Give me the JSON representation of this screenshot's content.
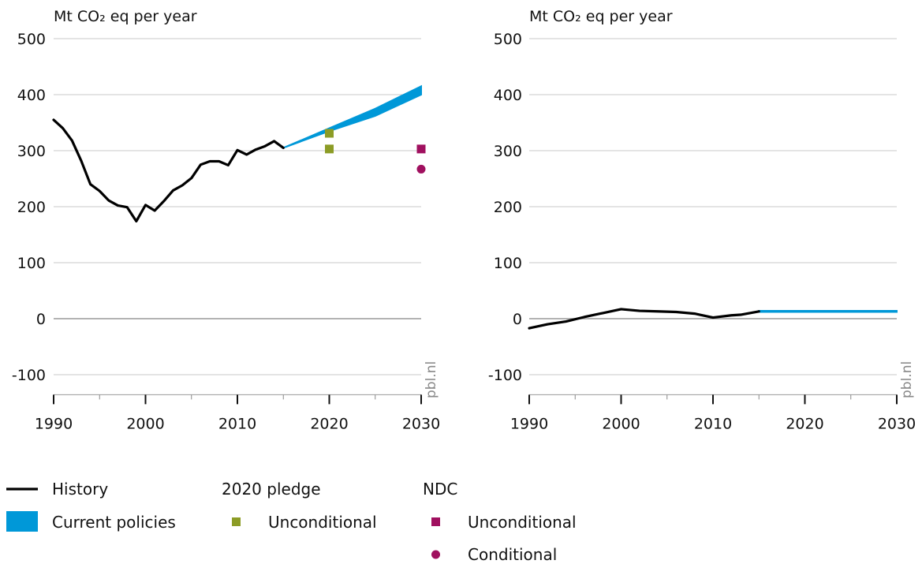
{
  "colors": {
    "history": "#000000",
    "current_policies": "#0098d8",
    "pledge_2020": "#8c9c26",
    "ndc": "#a0105f",
    "grid": "#c8c8c8",
    "zero": "#9a9a9a"
  },
  "legend": {
    "history": "History",
    "current_policies": "Current policies",
    "pledge_2020_title": "2020 pledge",
    "pledge_2020_unconditional": "Unconditional",
    "ndc_title": "NDC",
    "ndc_unconditional": "Unconditional",
    "ndc_conditional": "Conditional"
  },
  "chart_data": [
    {
      "type": "line",
      "ylabel": "Mt CO₂ eq per year",
      "source": "pbl.nl",
      "xlim": [
        1990,
        2030
      ],
      "ylim": [
        -140,
        500
      ],
      "xticks": [
        "1990",
        "2000",
        "2010",
        "2020",
        "2030"
      ],
      "yticks": [
        "500",
        "400",
        "300",
        "200",
        "100",
        "0",
        "-100"
      ],
      "history": {
        "x": [
          1990,
          1991,
          1992,
          1993,
          1994,
          1995,
          1996,
          1997,
          1998,
          1999,
          2000,
          2001,
          2002,
          2003,
          2004,
          2005,
          2006,
          2007,
          2008,
          2009,
          2010,
          2011,
          2012,
          2013,
          2014,
          2015
        ],
        "y": [
          355,
          340,
          318,
          282,
          240,
          228,
          211,
          202,
          199,
          174,
          203,
          193,
          210,
          229,
          238,
          251,
          275,
          281,
          281,
          274,
          301,
          293,
          302,
          308,
          317,
          305
        ]
      },
      "current_policies": {
        "x": [
          2015,
          2020,
          2025,
          2030
        ],
        "low": [
          305,
          335,
          362,
          400
        ],
        "high": [
          305,
          340,
          375,
          415
        ]
      },
      "pledge_2020_unconditional": {
        "x": [
          2020,
          2020
        ],
        "y": [
          331,
          303
        ]
      },
      "ndc_unconditional": {
        "x": [
          2030
        ],
        "y": [
          303
        ]
      },
      "ndc_conditional": {
        "x": [
          2030
        ],
        "y": [
          267
        ]
      }
    },
    {
      "type": "line",
      "ylabel": "Mt CO₂ eq per year",
      "source": "pbl.nl",
      "xlim": [
        1990,
        2030
      ],
      "ylim": [
        -140,
        500
      ],
      "xticks": [
        "1990",
        "2000",
        "2010",
        "2020",
        "2030"
      ],
      "yticks": [
        "500",
        "400",
        "300",
        "200",
        "100",
        "0",
        "-100"
      ],
      "history": {
        "x": [
          1990,
          1992,
          1994,
          1996,
          1998,
          2000,
          2002,
          2004,
          2006,
          2008,
          2010,
          2012,
          2013,
          2015
        ],
        "y": [
          -17,
          -10,
          -5,
          3,
          10,
          17,
          14,
          13,
          12,
          9,
          2,
          6,
          7,
          13
        ]
      },
      "current_policies": {
        "x": [
          2015,
          2030
        ],
        "low": [
          12,
          12
        ],
        "high": [
          14,
          14
        ]
      }
    }
  ]
}
